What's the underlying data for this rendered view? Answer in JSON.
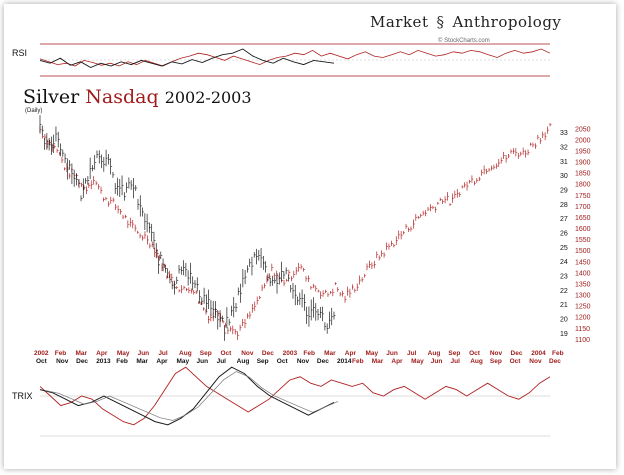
{
  "brand": {
    "left": "Market",
    "right": "Anthropology",
    "logo_icon": "ampersand-s-icon"
  },
  "credit": "© StockCharts.com",
  "title": {
    "part1": "Silver",
    "part2": "Nasdaq",
    "part3": "2002-2003"
  },
  "subtitle": "(Daily)",
  "panels": {
    "rsi_label": "RSI",
    "trix_label": "TRIX"
  },
  "colors": {
    "black_series": "#1a1a1a",
    "red_series": "#b02020",
    "axis_red": "#a01c1c",
    "grid": "#bbbbbb"
  },
  "chart_data": {
    "type": "line",
    "title": "Silver Nasdaq 2002-2003",
    "series": [
      {
        "name": "Silver",
        "color": "black",
        "axis_ticks": [
          19,
          20,
          21,
          22,
          23,
          24,
          25,
          26,
          27,
          28,
          29,
          30,
          31,
          32,
          33
        ],
        "ylim": [
          18.5,
          34.2
        ],
        "x_months_bottom": [
          "Oct",
          "Nov",
          "Dec",
          "2013",
          "Feb",
          "Mar",
          "Apr",
          "May",
          "Jun",
          "Jul",
          "Aug",
          "Sep",
          "Oct",
          "Nov",
          "Dec",
          "2014"
        ],
        "values": [
          33.2,
          31.8,
          33.0,
          31.2,
          30.2,
          28.6,
          30.8,
          31.6,
          31.0,
          29.4,
          28.8,
          29.6,
          27.5,
          26.4,
          24.3,
          23.6,
          22.4,
          24.1,
          22.8,
          21.8,
          21.3,
          20.2,
          19.4,
          20.6,
          22.4,
          23.8,
          24.9,
          23.2,
          22.6,
          23.4,
          22.0,
          21.4,
          20.4,
          20.9,
          19.6,
          20.1
        ]
      },
      {
        "name": "Nasdaq",
        "color": "red",
        "axis_ticks": [
          1100,
          1150,
          1200,
          1250,
          1300,
          1350,
          1400,
          1450,
          1500,
          1550,
          1600,
          1650,
          1700,
          1750,
          1800,
          1850,
          1900,
          1950,
          2000,
          2050
        ],
        "ylim": [
          1095,
          2110
        ],
        "x_months_top": [
          "2002",
          "Feb",
          "Mar",
          "Apr",
          "May",
          "Jun",
          "Jul",
          "Aug",
          "Sep",
          "Oct",
          "Nov",
          "Dec",
          "2003",
          "Feb",
          "Mar",
          "Apr",
          "May",
          "Jun",
          "Jul",
          "Aug",
          "Sep",
          "Oct",
          "Nov",
          "Dec",
          "2004",
          "Feb"
        ],
        "values": [
          2050,
          1990,
          1950,
          1860,
          1840,
          1780,
          1830,
          1750,
          1720,
          1680,
          1620,
          1580,
          1560,
          1500,
          1410,
          1360,
          1320,
          1340,
          1260,
          1200,
          1230,
          1160,
          1130,
          1180,
          1250,
          1330,
          1420,
          1360,
          1390,
          1440,
          1360,
          1330,
          1300,
          1340,
          1290,
          1330,
          1380,
          1440,
          1480,
          1520,
          1560,
          1600,
          1640,
          1680,
          1700,
          1740,
          1720,
          1780,
          1810,
          1840,
          1880,
          1900,
          1920,
          1950,
          1940,
          1980,
          2020,
          2060
        ]
      }
    ],
    "rsi": {
      "black_values": [
        52,
        48,
        55,
        45,
        50,
        42,
        48,
        44,
        50,
        46,
        52,
        48,
        44,
        50,
        47,
        53,
        49,
        55,
        60,
        62,
        68,
        58,
        52,
        48,
        55,
        50,
        46,
        52,
        50,
        48
      ],
      "red_values": [
        54,
        50,
        46,
        48,
        44,
        52,
        49,
        45,
        48,
        44,
        50,
        46,
        52,
        48,
        44,
        50,
        55,
        58,
        62,
        60,
        56,
        52,
        58,
        54,
        50,
        46,
        52,
        56,
        58,
        62,
        60,
        66,
        58,
        62,
        58,
        54,
        60,
        64,
        58,
        56,
        60,
        64,
        60,
        66,
        62,
        58,
        60,
        64,
        62,
        66,
        64,
        60,
        56,
        62,
        66,
        62,
        64,
        68,
        62
      ]
    },
    "trix": {
      "black_values": [
        0.2,
        0.1,
        -0.1,
        -0.3,
        -0.2,
        0.0,
        -0.2,
        -0.4,
        -0.6,
        -0.8,
        -0.9,
        -0.7,
        -0.4,
        0.1,
        0.6,
        0.9,
        0.7,
        0.3,
        0.0,
        -0.2,
        -0.4,
        -0.6,
        -0.4,
        -0.2
      ],
      "red_values": [
        0.3,
        0.0,
        -0.3,
        -0.2,
        0.0,
        -0.1,
        -0.4,
        -0.6,
        -0.8,
        -0.9,
        -0.7,
        -0.3,
        0.2,
        0.7,
        0.9,
        0.6,
        0.3,
        0.1,
        -0.1,
        -0.3,
        -0.5,
        -0.3,
        -0.1,
        0.2,
        0.5,
        0.6,
        0.4,
        0.3,
        0.5,
        0.4,
        0.3,
        0.4,
        0.1,
        0.0,
        0.2,
        0.3,
        0.1,
        -0.1,
        0.1,
        0.3,
        0.2,
        0.0,
        0.2,
        0.4,
        0.2,
        0.0,
        -0.1,
        0.1,
        0.4,
        0.6
      ]
    }
  }
}
